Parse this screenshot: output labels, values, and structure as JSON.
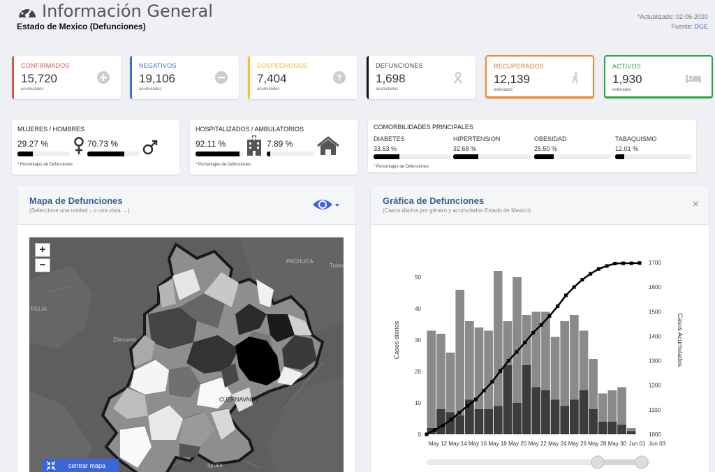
{
  "header": {
    "title": "Información General",
    "subtitle": "Estado de Mexico (Defunciones)",
    "updated": "*Actualizado: 02-06-2020",
    "source_label": "Fuente:",
    "source_link": "DGE"
  },
  "stats": [
    {
      "label": "CONFIRMADOS",
      "value": "15,720",
      "sub": "acumulados",
      "color": "#d9534f",
      "icon": "plus-circle-icon"
    },
    {
      "label": "NEGATIVOS",
      "value": "19,106",
      "sub": "acumulados",
      "color": "#3b6fd6",
      "icon": "minus-circle-icon"
    },
    {
      "label": "SOSPECHOSOS",
      "value": "7,404",
      "sub": "acumulados",
      "color": "#f0c330",
      "icon": "question-circle-icon"
    },
    {
      "label": "DEFUNCIONES",
      "value": "1,698",
      "sub": "acumulados",
      "color": "#111111",
      "icon": "ribbon-icon"
    },
    {
      "label": "RECUPERADOS",
      "value": "12,139",
      "sub": "estimados",
      "color": "#f0882a",
      "icon": "walking-person-icon"
    },
    {
      "label": "ACTIVOS",
      "value": "1,930",
      "sub": "estimados",
      "color": "#27a745",
      "icon": "bed-icon"
    }
  ],
  "gender": {
    "label": "MUJERES / HOMBRES",
    "women_pct": "29.27 %",
    "men_pct": "70.73 %",
    "women_fill": 0.2927,
    "men_fill": 0.7073,
    "note": "* Porcentajes de Defunciones"
  },
  "hospital": {
    "label": "HOSPITALIZADOS / AMBULATORIOS",
    "hosp_pct": "92.11 %",
    "amb_pct": "7.89 %",
    "hosp_fill": 0.9211,
    "amb_fill": 0.0789,
    "note": "* Porcentajes de Defunciones"
  },
  "comorbidities": {
    "label": "COMORBILIDADES PRINCIPALES",
    "items": [
      {
        "name": "DIABETES",
        "pct": "33.63 %",
        "fill": 0.3363
      },
      {
        "name": "HIPERTENSION",
        "pct": "32.68 %",
        "fill": 0.3268
      },
      {
        "name": "OBESIDAD",
        "pct": "25.50 %",
        "fill": 0.255
      },
      {
        "name": "TABAQUISMO",
        "pct": "12.01 %",
        "fill": 0.1201
      }
    ],
    "note": "* Porcentajes de Defunciones"
  },
  "map_panel": {
    "title": "Mapa de Defunciones",
    "subtitle": "(Seleccione una unidad ↓ o una vista →)",
    "zoom_in": "+",
    "zoom_out": "−",
    "center_button": "centrar mapa",
    "labels": [
      "PACHUCA",
      "Tulan",
      "RELIA",
      "Zitacuaro",
      "CUERNAVACA",
      "Iguala"
    ]
  },
  "chart_panel": {
    "title": "Gráfica de Defunciones",
    "subtitle": "(Casos diarios por género y acumulados Estado de Mexico)",
    "close": "×"
  },
  "chart_data": {
    "type": "bar",
    "ylabel": "Casos diarios",
    "y2label": "Casos Acumulados",
    "ylim": [
      0,
      60
    ],
    "y2lim": [
      1000,
      1700
    ],
    "yticks": [
      0,
      10,
      20,
      30,
      40,
      50
    ],
    "y2ticks": [
      1000,
      1100,
      1200,
      1300,
      1400,
      1500,
      1600,
      1700
    ],
    "tick_labels": [
      "May 12",
      "May 14",
      "May 16",
      "May 18",
      "May 20",
      "May 22",
      "May 24",
      "May 26",
      "May 28",
      "May 30",
      "Jun 01",
      "Jun 03"
    ],
    "bars_total": [
      33,
      32,
      26,
      46,
      36,
      34,
      33,
      52,
      36,
      50,
      38,
      39,
      39,
      31,
      36,
      38,
      33,
      24,
      13,
      14,
      15,
      2
    ],
    "bars_dark": [
      2,
      8,
      7,
      6,
      11,
      8,
      8,
      9,
      22,
      10,
      22,
      15,
      14,
      11,
      9,
      11,
      14,
      8,
      4,
      4,
      3,
      1
    ],
    "cumulative": [
      1000,
      1018,
      1036,
      1060,
      1088,
      1116,
      1142,
      1178,
      1214,
      1258,
      1300,
      1336,
      1374,
      1414,
      1446,
      1482,
      1522,
      1566,
      1600,
      1630,
      1654,
      1674,
      1686,
      1696,
      1697,
      1697,
      1698
    ]
  }
}
